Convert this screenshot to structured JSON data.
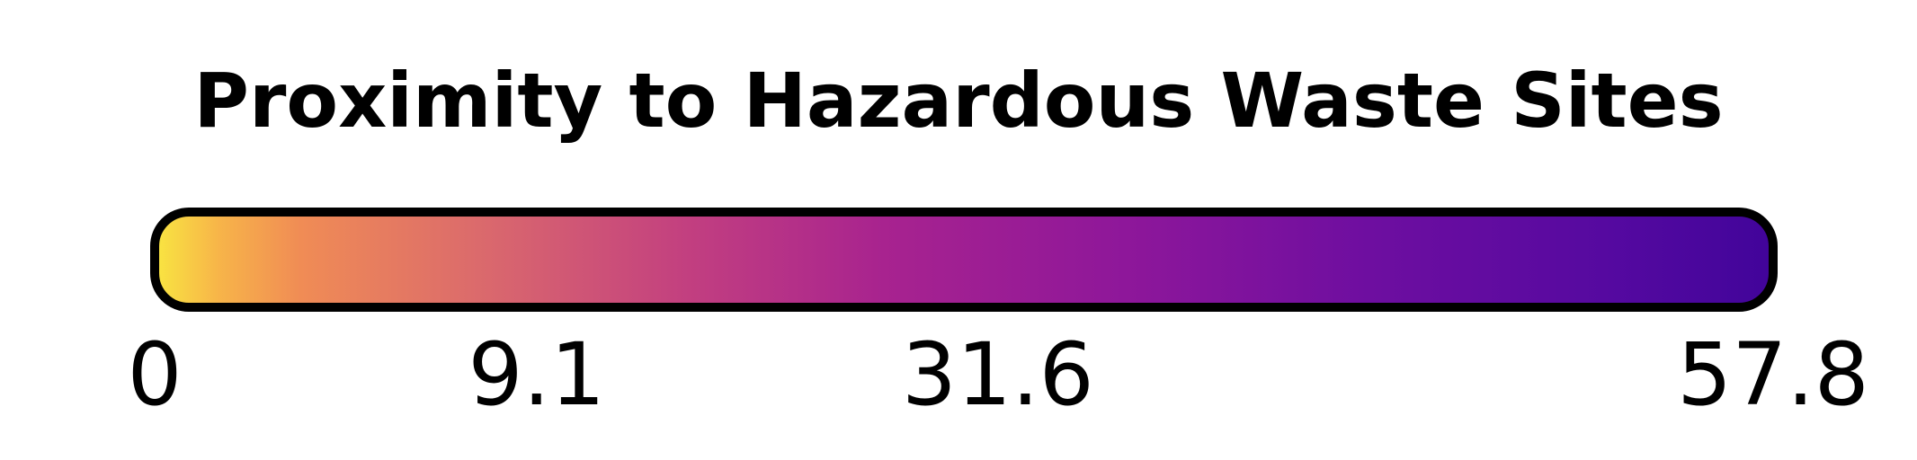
{
  "chart_data": {
    "type": "colorbar",
    "title": "Proximity to Hazardous Waste Sites",
    "colormap": "plasma (reversed)",
    "gradient_stops": [
      {
        "offset": 0.0,
        "color": "#f9e641"
      },
      {
        "offset": 0.04,
        "color": "#f7b449"
      },
      {
        "offset": 0.09,
        "color": "#f08c55"
      },
      {
        "offset": 0.2,
        "color": "#db6a6c"
      },
      {
        "offset": 0.33,
        "color": "#c23f80"
      },
      {
        "offset": 0.45,
        "color": "#a8238f"
      },
      {
        "offset": 0.6,
        "color": "#8e179a"
      },
      {
        "offset": 0.75,
        "color": "#6e0ea0"
      },
      {
        "offset": 0.9,
        "color": "#5509a0"
      },
      {
        "offset": 1.0,
        "color": "#41049a"
      }
    ],
    "ticks": [
      {
        "label": "0",
        "position": 0.0
      },
      {
        "label": "9.1",
        "position": 0.236
      },
      {
        "label": "31.6",
        "position": 0.521
      },
      {
        "label": "57.8",
        "position": 1.0
      }
    ],
    "border_color": "#000000"
  }
}
